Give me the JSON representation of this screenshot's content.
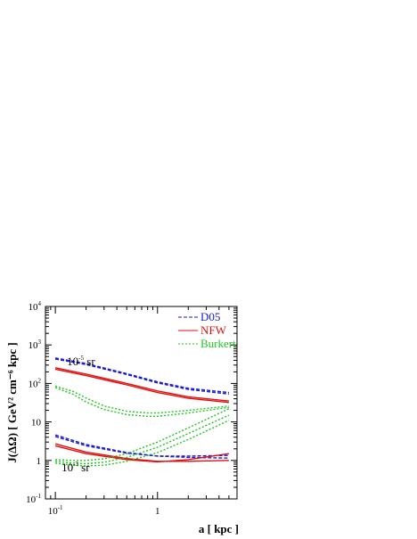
{
  "chart_data": {
    "type": "line",
    "xscale": "log",
    "yscale": "log",
    "xlim": [
      0.08,
      6
    ],
    "ylim": [
      0.1,
      10000
    ],
    "xlabel": "a [ kpc ]",
    "ylabel": "J(ΔΩ) [ GeV² cm⁻⁶ kpc ]",
    "x_ticks": [
      {
        "base": "10",
        "exp": "-1",
        "value": 0.1
      },
      {
        "base": "1",
        "exp": "",
        "value": 1
      }
    ],
    "y_ticks": [
      {
        "base": "10",
        "exp": "-1",
        "value": 0.1
      },
      {
        "base": "1",
        "exp": "",
        "value": 1
      },
      {
        "base": "10",
        "exp": "",
        "value": 10
      },
      {
        "base": "10",
        "exp": "2",
        "value": 100
      },
      {
        "base": "10",
        "exp": "3",
        "value": 1000
      },
      {
        "base": "10",
        "exp": "4",
        "value": 10000
      }
    ],
    "annotations": [
      {
        "base": "10",
        "exp": "-5",
        "unit": " sr",
        "x": 0.13,
        "y": 300
      },
      {
        "base": "10",
        "exp": "-3",
        "unit": " sr",
        "x": 0.115,
        "y": 0.52
      }
    ],
    "legend_position": "top-right",
    "series": [
      {
        "name": "D05",
        "color": "#1a1ad6",
        "dash": "4,2",
        "group": "1e-5 sr",
        "x": [
          0.1,
          0.2,
          0.5,
          1,
          2,
          5
        ],
        "y": [
          460,
          330,
          180,
          110,
          75,
          58
        ]
      },
      {
        "name": "",
        "color": "#1a1ad6",
        "dash": "4,2",
        "group": "1e-5 sr",
        "x": [
          0.1,
          0.2,
          0.5,
          1,
          2,
          5
        ],
        "y": [
          430,
          310,
          170,
          103,
          70,
          53
        ]
      },
      {
        "name": "NFW",
        "color": "#e01010",
        "dash": "",
        "group": "1e-5 sr",
        "x": [
          0.1,
          0.2,
          0.5,
          1,
          2,
          5
        ],
        "y": [
          255,
          175,
          100,
          64,
          45,
          35
        ]
      },
      {
        "name": "",
        "color": "#e01010",
        "dash": "",
        "group": "1e-5 sr",
        "x": [
          0.1,
          0.2,
          0.5,
          1,
          2,
          5
        ],
        "y": [
          235,
          160,
          92,
          58,
          41,
          32
        ]
      },
      {
        "name": "Burkert",
        "color": "#22c422",
        "dash": "2,2",
        "group": "1e-5 sr",
        "x": [
          0.1,
          0.15,
          0.2,
          0.3,
          0.5,
          0.8,
          1,
          2,
          5
        ],
        "y": [
          85,
          62,
          42,
          26,
          19,
          17,
          17,
          20,
          26
        ]
      },
      {
        "name": "",
        "color": "#22c422",
        "dash": "2,2",
        "group": "1e-5 sr",
        "x": [
          0.1,
          0.15,
          0.2,
          0.3,
          0.5,
          0.8,
          1,
          2,
          5
        ],
        "y": [
          78,
          52,
          33,
          21,
          15.5,
          14,
          14,
          17,
          24
        ]
      },
      {
        "name": "",
        "color": "#1a1ad6",
        "dash": "4,2",
        "group": "1e-3 sr",
        "x": [
          0.1,
          0.2,
          0.5,
          1,
          2,
          5
        ],
        "y": [
          4.6,
          2.6,
          1.6,
          1.3,
          1.2,
          1.15
        ]
      },
      {
        "name": "",
        "color": "#1a1ad6",
        "dash": "4,2",
        "group": "1e-3 sr",
        "x": [
          0.1,
          0.2,
          0.5,
          1,
          2,
          5
        ],
        "y": [
          4.2,
          2.4,
          1.55,
          1.3,
          1.3,
          1.35
        ]
      },
      {
        "name": "",
        "color": "#e01010",
        "dash": "",
        "group": "1e-3 sr",
        "x": [
          0.1,
          0.2,
          0.5,
          1,
          2,
          5
        ],
        "y": [
          2.7,
          1.65,
          1.12,
          0.95,
          0.95,
          1.0
        ]
      },
      {
        "name": "",
        "color": "#e01010",
        "dash": "",
        "group": "1e-3 sr",
        "x": [
          0.1,
          0.2,
          0.5,
          1,
          2,
          5
        ],
        "y": [
          2.4,
          1.5,
          1.05,
          0.92,
          1.05,
          1.5
        ]
      },
      {
        "name": "",
        "color": "#22c422",
        "dash": "2,2",
        "group": "1e-3 sr",
        "x": [
          0.1,
          0.15,
          0.2,
          0.3,
          0.5,
          1,
          2,
          5
        ],
        "y": [
          1.05,
          1.0,
          1.0,
          1.1,
          1.5,
          3.0,
          7.0,
          22
        ]
      },
      {
        "name": "",
        "color": "#22c422",
        "dash": "2,2",
        "group": "1e-3 sr",
        "x": [
          0.1,
          0.15,
          0.2,
          0.3,
          0.5,
          1,
          2,
          5
        ],
        "y": [
          0.95,
          0.85,
          0.82,
          0.9,
          1.2,
          2.2,
          5.0,
          15
        ]
      },
      {
        "name": "",
        "color": "#22c422",
        "dash": "2,2",
        "group": "1e-3 sr",
        "x": [
          0.1,
          0.15,
          0.2,
          0.3,
          0.5,
          1,
          2,
          5
        ],
        "y": [
          0.85,
          0.75,
          0.72,
          0.75,
          0.95,
          1.6,
          3.5,
          11
        ]
      }
    ]
  }
}
